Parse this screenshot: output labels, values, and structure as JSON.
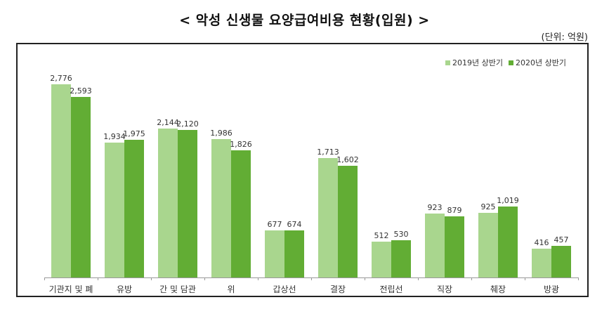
{
  "title": "< 악성 신생물 요양급여비용 현황(입원) >",
  "unit": "(단위: 억원)",
  "colors": {
    "series2019": "#a9d68e",
    "series2020": "#62ad34"
  },
  "legend": [
    {
      "label": "2019년 상반기",
      "color": "#a9d68e"
    },
    {
      "label": "2020년 상반기",
      "color": "#62ad34"
    }
  ],
  "chart_data": {
    "type": "bar",
    "title": "< 악성 신생물 요양급여비용 현황(입원) >",
    "xlabel": "",
    "ylabel": "(단위: 억원)",
    "ylim": [
      0,
      2900
    ],
    "grid": false,
    "legend_position": "top-right",
    "categories": [
      "기관지 및 폐",
      "유방",
      "간 및 담관",
      "위",
      "갑상선",
      "결장",
      "전립선",
      "직장",
      "췌장",
      "방광"
    ],
    "series": [
      {
        "name": "2019년 상반기",
        "values": [
          2776,
          1934,
          2144,
          1986,
          677,
          1713,
          512,
          923,
          925,
          416
        ]
      },
      {
        "name": "2020년 상반기",
        "values": [
          2593,
          1975,
          2120,
          1826,
          674,
          1602,
          530,
          879,
          1019,
          457
        ]
      }
    ],
    "value_labels": [
      [
        "2,776",
        "2,593"
      ],
      [
        "1,934",
        "1,975"
      ],
      [
        "2,144",
        "2,120"
      ],
      [
        "1,986",
        "1,826"
      ],
      [
        "677",
        "674"
      ],
      [
        "1,713",
        "1,602"
      ],
      [
        "512",
        "530"
      ],
      [
        "923",
        "879"
      ],
      [
        "925",
        "1,019"
      ],
      [
        "416",
        "457"
      ]
    ]
  }
}
